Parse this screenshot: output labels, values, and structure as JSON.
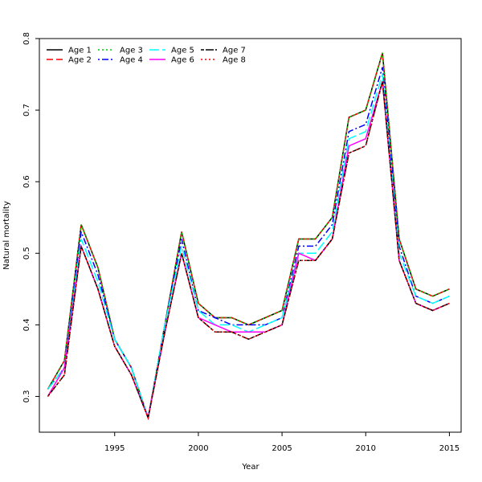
{
  "chart_data": {
    "type": "line",
    "title": "",
    "xlabel": "Year",
    "ylabel": "Natural mortality",
    "xlim": [
      1990.5,
      2015.7
    ],
    "ylim": [
      0.25,
      0.8
    ],
    "xticks": [
      1995,
      2000,
      2005,
      2010,
      2015
    ],
    "yticks": [
      0.3,
      0.4,
      0.5,
      0.6,
      0.7,
      0.8
    ],
    "grid": false,
    "legend_position": "top-left",
    "x": [
      1991,
      1992,
      1993,
      1994,
      1995,
      1996,
      1997,
      1998,
      1999,
      2000,
      2001,
      2002,
      2003,
      2004,
      2005,
      2006,
      2007,
      2008,
      2009,
      2010,
      2011,
      2012,
      2013,
      2014,
      2015
    ],
    "series": [
      {
        "name": "Age 1",
        "color": "#000000",
        "dash": "solid",
        "values": [
          0.31,
          0.35,
          0.54,
          0.48,
          0.38,
          0.34,
          0.27,
          0.4,
          0.53,
          0.43,
          0.41,
          0.41,
          0.4,
          0.41,
          0.42,
          0.52,
          0.52,
          0.55,
          0.69,
          0.7,
          0.78,
          0.52,
          0.45,
          0.44,
          0.45
        ]
      },
      {
        "name": "Age 2",
        "color": "#ff0000",
        "dash": "dashed",
        "values": [
          0.31,
          0.35,
          0.54,
          0.48,
          0.38,
          0.34,
          0.27,
          0.4,
          0.53,
          0.43,
          0.41,
          0.41,
          0.4,
          0.41,
          0.42,
          0.52,
          0.52,
          0.55,
          0.69,
          0.7,
          0.78,
          0.52,
          0.45,
          0.44,
          0.45
        ]
      },
      {
        "name": "Age 3",
        "color": "#00cd00",
        "dash": "dotted",
        "values": [
          0.31,
          0.35,
          0.54,
          0.48,
          0.38,
          0.34,
          0.27,
          0.4,
          0.53,
          0.43,
          0.41,
          0.41,
          0.4,
          0.41,
          0.42,
          0.52,
          0.52,
          0.55,
          0.69,
          0.7,
          0.78,
          0.52,
          0.45,
          0.44,
          0.45
        ]
      },
      {
        "name": "Age 4",
        "color": "#0000ff",
        "dash": "dotdash",
        "values": [
          0.31,
          0.34,
          0.53,
          0.47,
          0.38,
          0.34,
          0.27,
          0.4,
          0.52,
          0.42,
          0.41,
          0.4,
          0.4,
          0.4,
          0.41,
          0.51,
          0.51,
          0.54,
          0.67,
          0.68,
          0.76,
          0.51,
          0.44,
          0.43,
          0.44
        ]
      },
      {
        "name": "Age 5",
        "color": "#00ffff",
        "dash": "longdash",
        "values": [
          0.31,
          0.34,
          0.52,
          0.46,
          0.38,
          0.34,
          0.27,
          0.4,
          0.51,
          0.42,
          0.4,
          0.4,
          0.39,
          0.4,
          0.41,
          0.5,
          0.5,
          0.53,
          0.66,
          0.67,
          0.75,
          0.5,
          0.44,
          0.43,
          0.44
        ]
      },
      {
        "name": "Age 6",
        "color": "#ff00ff",
        "dash": "solid",
        "values": [
          0.3,
          0.34,
          0.51,
          0.45,
          0.37,
          0.33,
          0.27,
          0.39,
          0.5,
          0.41,
          0.4,
          0.39,
          0.39,
          0.39,
          0.4,
          0.5,
          0.49,
          0.52,
          0.65,
          0.66,
          0.74,
          0.49,
          0.43,
          0.42,
          0.43
        ]
      },
      {
        "name": "Age 7",
        "color": "#000000",
        "dash": "twodash",
        "values": [
          0.3,
          0.33,
          0.51,
          0.45,
          0.37,
          0.33,
          0.27,
          0.39,
          0.5,
          0.41,
          0.39,
          0.39,
          0.38,
          0.39,
          0.4,
          0.49,
          0.49,
          0.52,
          0.64,
          0.65,
          0.74,
          0.49,
          0.43,
          0.42,
          0.43
        ]
      },
      {
        "name": "Age 8",
        "color": "#ff0000",
        "dash": "dotted",
        "values": [
          0.3,
          0.33,
          0.51,
          0.45,
          0.37,
          0.33,
          0.27,
          0.39,
          0.5,
          0.41,
          0.39,
          0.39,
          0.38,
          0.39,
          0.4,
          0.49,
          0.49,
          0.52,
          0.64,
          0.65,
          0.74,
          0.49,
          0.43,
          0.42,
          0.43
        ]
      }
    ]
  }
}
